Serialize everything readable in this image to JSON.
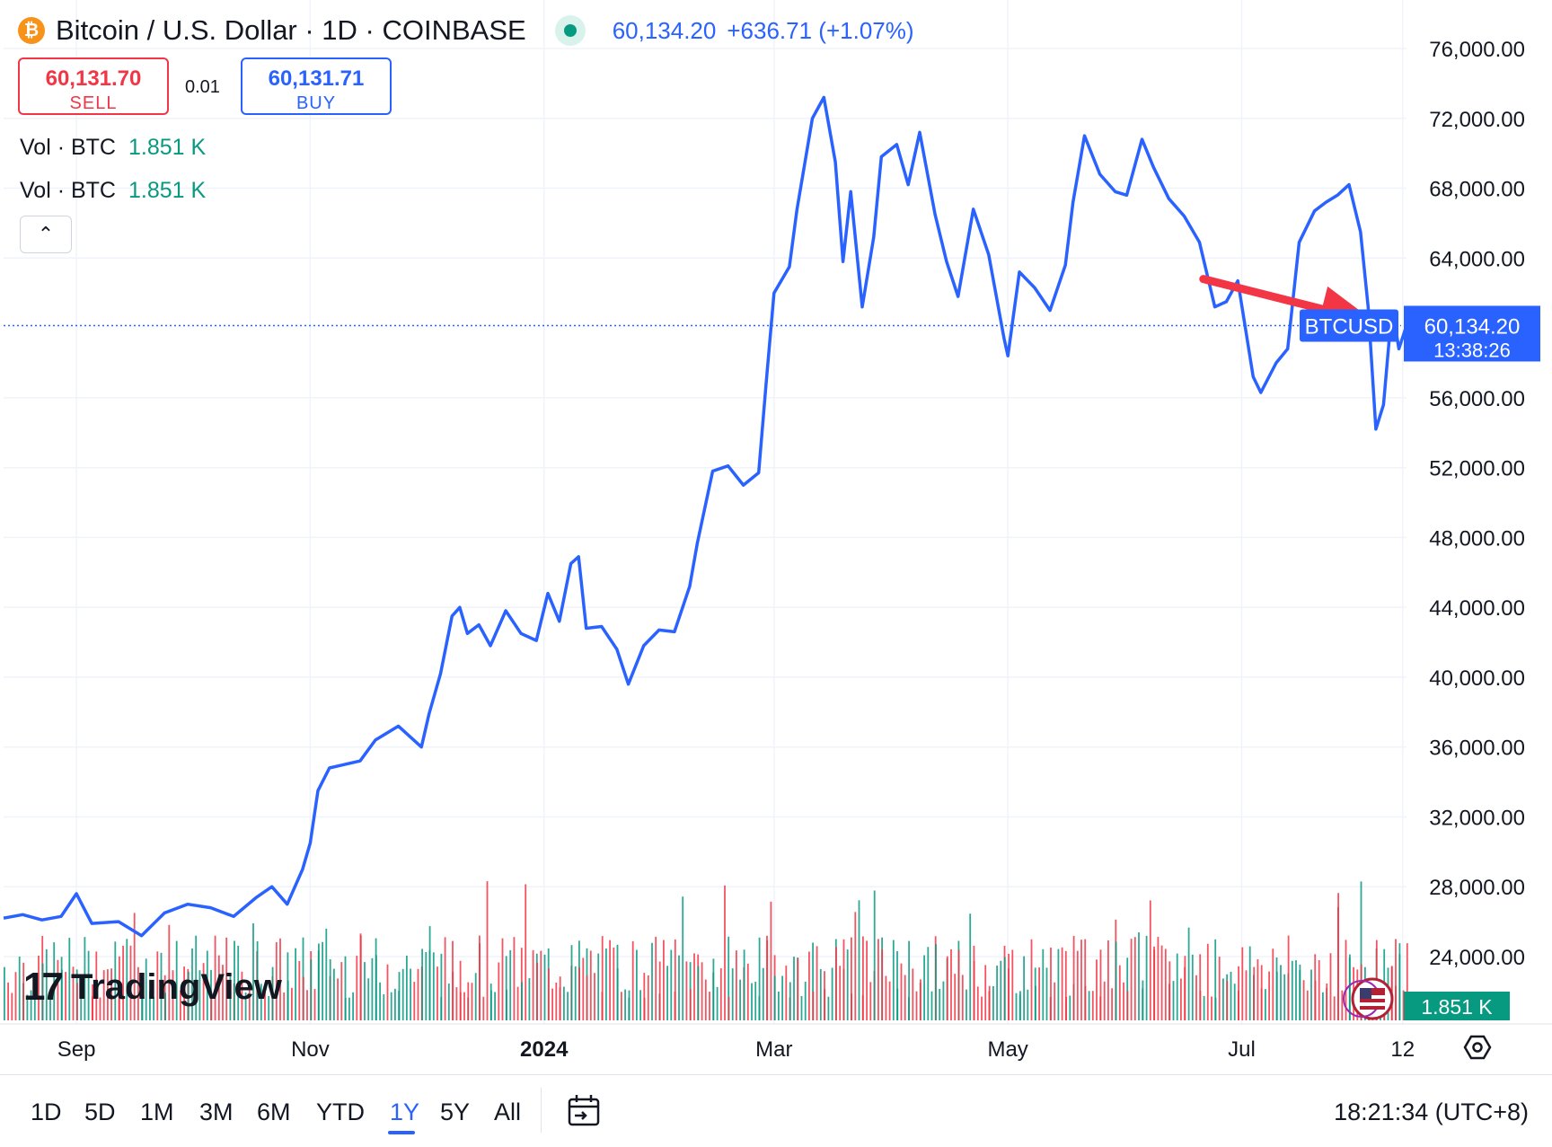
{
  "header": {
    "coin_glyph": "₿",
    "symbol_title": "Bitcoin / U.S. Dollar · 1D · COINBASE",
    "last_price": "60,134.20",
    "change": "+636.71 (+1.07%)"
  },
  "trade": {
    "sell_price": "60,131.70",
    "sell_label": "SELL",
    "spread": "0.01",
    "buy_price": "60,131.71",
    "buy_label": "BUY"
  },
  "volume_legend": [
    {
      "label": "Vol · BTC",
      "value": "1.851 K"
    },
    {
      "label": "Vol · BTC",
      "value": "1.851 K"
    }
  ],
  "collapse_glyph": "⌃",
  "logo": {
    "mark": "17",
    "text": "TradingView"
  },
  "colors": {
    "line": "#2962ff",
    "up_volume": "#089981",
    "down_volume": "#f23645",
    "annotation_arrow": "#f23645",
    "grid": "#f0f3fa"
  },
  "chart_data": {
    "type": "line",
    "y_axis_ticks": [
      "76,000.00",
      "72,000.00",
      "68,000.00",
      "64,000.00",
      "56,000.00",
      "52,000.00",
      "48,000.00",
      "44,000.00",
      "40,000.00",
      "36,000.00",
      "32,000.00",
      "28,000.00",
      "24,000.00"
    ],
    "ylim": [
      22000,
      78000
    ],
    "x_axis_ticks": [
      "Sep",
      "Nov",
      "2024",
      "Mar",
      "May",
      "Jul",
      "12"
    ],
    "x_tick_dates": [
      "2023-09-01",
      "2023-11-01",
      "2024-01-01",
      "2024-03-01",
      "2024-05-01",
      "2024-07-01",
      "2024-08-12"
    ],
    "xlim": [
      "2023-08-13",
      "2024-08-13"
    ],
    "current_price_label": "60,134.20",
    "countdown": "13:38:26",
    "last_price": 60134.2,
    "series_label": "BTCUSD",
    "volume_label": "1.851 K",
    "grid": true,
    "series": [
      {
        "name": "BTCUSD",
        "points": [
          [
            "2023-08-13",
            26200
          ],
          [
            "2023-08-18",
            26400
          ],
          [
            "2023-08-23",
            26100
          ],
          [
            "2023-08-28",
            26300
          ],
          [
            "2023-09-01",
            27600
          ],
          [
            "2023-09-05",
            25900
          ],
          [
            "2023-09-12",
            26000
          ],
          [
            "2023-09-18",
            25200
          ],
          [
            "2023-09-24",
            26500
          ],
          [
            "2023-09-30",
            27000
          ],
          [
            "2023-10-06",
            26800
          ],
          [
            "2023-10-12",
            26300
          ],
          [
            "2023-10-18",
            27400
          ],
          [
            "2023-10-22",
            28000
          ],
          [
            "2023-10-26",
            27000
          ],
          [
            "2023-10-30",
            29000
          ],
          [
            "2023-11-01",
            30500
          ],
          [
            "2023-11-03",
            33500
          ],
          [
            "2023-11-06",
            34800
          ],
          [
            "2023-11-10",
            35000
          ],
          [
            "2023-11-14",
            35200
          ],
          [
            "2023-11-18",
            36400
          ],
          [
            "2023-11-24",
            37200
          ],
          [
            "2023-11-30",
            36000
          ],
          [
            "2023-12-02",
            37900
          ],
          [
            "2023-12-05",
            40200
          ],
          [
            "2023-12-08",
            43500
          ],
          [
            "2023-12-10",
            44000
          ],
          [
            "2023-12-12",
            42500
          ],
          [
            "2023-12-15",
            43000
          ],
          [
            "2023-12-18",
            41800
          ],
          [
            "2023-12-22",
            43800
          ],
          [
            "2023-12-26",
            42500
          ],
          [
            "2023-12-30",
            42100
          ],
          [
            "2024-01-02",
            44800
          ],
          [
            "2024-01-05",
            43200
          ],
          [
            "2024-01-08",
            46500
          ],
          [
            "2024-01-10",
            46900
          ],
          [
            "2024-01-12",
            42800
          ],
          [
            "2024-01-16",
            42900
          ],
          [
            "2024-01-20",
            41600
          ],
          [
            "2024-01-23",
            39600
          ],
          [
            "2024-01-27",
            41800
          ],
          [
            "2024-01-31",
            42700
          ],
          [
            "2024-02-04",
            42600
          ],
          [
            "2024-02-08",
            45200
          ],
          [
            "2024-02-10",
            47700
          ],
          [
            "2024-02-14",
            51800
          ],
          [
            "2024-02-18",
            52100
          ],
          [
            "2024-02-22",
            51000
          ],
          [
            "2024-02-26",
            51700
          ],
          [
            "2024-02-28",
            57000
          ],
          [
            "2024-03-01",
            62000
          ],
          [
            "2024-03-05",
            63500
          ],
          [
            "2024-03-07",
            66800
          ],
          [
            "2024-03-11",
            72000
          ],
          [
            "2024-03-14",
            73200
          ],
          [
            "2024-03-17",
            69500
          ],
          [
            "2024-03-19",
            63800
          ],
          [
            "2024-03-21",
            67800
          ],
          [
            "2024-03-24",
            61200
          ],
          [
            "2024-03-27",
            65200
          ],
          [
            "2024-03-29",
            69800
          ],
          [
            "2024-04-02",
            70500
          ],
          [
            "2024-04-05",
            68200
          ],
          [
            "2024-04-08",
            71200
          ],
          [
            "2024-04-12",
            66500
          ],
          [
            "2024-04-15",
            63800
          ],
          [
            "2024-04-18",
            61800
          ],
          [
            "2024-04-22",
            66800
          ],
          [
            "2024-04-26",
            64200
          ],
          [
            "2024-04-30",
            59400
          ],
          [
            "2024-05-01",
            58400
          ],
          [
            "2024-05-04",
            63200
          ],
          [
            "2024-05-08",
            62300
          ],
          [
            "2024-05-12",
            61000
          ],
          [
            "2024-05-16",
            63600
          ],
          [
            "2024-05-18",
            67200
          ],
          [
            "2024-05-21",
            71000
          ],
          [
            "2024-05-25",
            68800
          ],
          [
            "2024-05-29",
            67800
          ],
          [
            "2024-06-01",
            67600
          ],
          [
            "2024-06-05",
            70800
          ],
          [
            "2024-06-08",
            69200
          ],
          [
            "2024-06-12",
            67400
          ],
          [
            "2024-06-16",
            66400
          ],
          [
            "2024-06-20",
            64900
          ],
          [
            "2024-06-24",
            61200
          ],
          [
            "2024-06-27",
            61500
          ],
          [
            "2024-06-30",
            62700
          ],
          [
            "2024-07-04",
            57200
          ],
          [
            "2024-07-06",
            56300
          ],
          [
            "2024-07-10",
            58000
          ],
          [
            "2024-07-13",
            58800
          ],
          [
            "2024-07-16",
            64900
          ],
          [
            "2024-07-20",
            66700
          ],
          [
            "2024-07-23",
            67200
          ],
          [
            "2024-07-26",
            67600
          ],
          [
            "2024-07-29",
            68200
          ],
          [
            "2024-08-01",
            65500
          ],
          [
            "2024-08-03",
            61200
          ],
          [
            "2024-08-05",
            54200
          ],
          [
            "2024-08-07",
            55600
          ],
          [
            "2024-08-09",
            60600
          ],
          [
            "2024-08-10",
            60200
          ],
          [
            "2024-08-11",
            58800
          ],
          [
            "2024-08-13",
            60134
          ]
        ]
      }
    ],
    "annotations": [
      {
        "type": "arrow",
        "color": "#f23645",
        "from": [
          "2024-06-21",
          62800
        ],
        "to": [
          "2024-08-05",
          60300
        ]
      }
    ]
  },
  "toolbar": {
    "ranges": [
      "1D",
      "5D",
      "1M",
      "3M",
      "6M",
      "YTD",
      "1Y",
      "5Y",
      "All"
    ],
    "active_range": "1Y",
    "time": "18:21:34 (UTC+8)"
  }
}
